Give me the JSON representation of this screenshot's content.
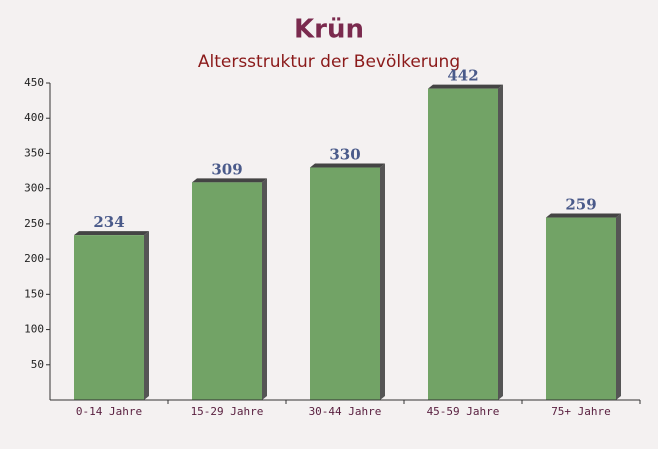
{
  "chart_data": {
    "type": "bar",
    "title": "Krün",
    "subtitle": "Altersstruktur der Bevölkerung",
    "categories": [
      "0-14 Jahre",
      "15-29 Jahre",
      "30-44 Jahre",
      "45-59 Jahre",
      "75+ Jahre"
    ],
    "values": [
      234,
      309,
      330,
      442,
      259
    ],
    "color": "#6a9e5e",
    "ylim": [
      0,
      450
    ],
    "yticks": [
      50,
      100,
      150,
      200,
      250,
      300,
      350,
      400,
      450
    ]
  }
}
